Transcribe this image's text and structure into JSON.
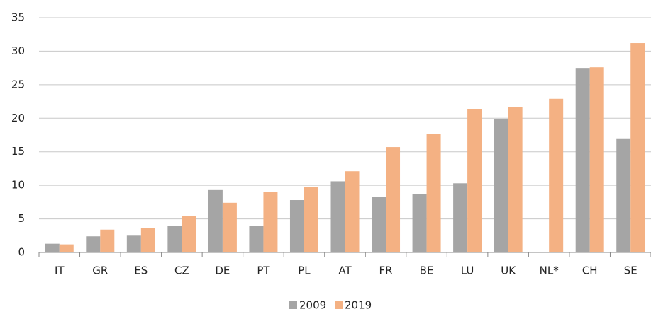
{
  "chart_data": {
    "type": "bar",
    "categories": [
      "IT",
      "GR",
      "ES",
      "CZ",
      "DE",
      "PT",
      "PL",
      "AT",
      "FR",
      "BE",
      "LU",
      "UK",
      "NL*",
      "CH",
      "SE"
    ],
    "series": [
      {
        "name": "2009",
        "color": "#a5a5a5",
        "values": [
          1.3,
          2.4,
          2.5,
          4.0,
          9.4,
          4.0,
          7.8,
          10.6,
          8.3,
          8.7,
          10.3,
          19.9,
          null,
          27.5,
          17.0
        ]
      },
      {
        "name": "2019",
        "color": "#f4b183",
        "values": [
          1.2,
          3.4,
          3.6,
          5.4,
          7.4,
          9.0,
          9.8,
          12.1,
          15.7,
          17.7,
          21.4,
          21.7,
          22.9,
          27.6,
          31.2
        ]
      }
    ],
    "ylim": [
      0,
      35
    ],
    "yticks": [
      0,
      5,
      10,
      15,
      20,
      25,
      30,
      35
    ],
    "grid": true,
    "legend": "bottom"
  }
}
